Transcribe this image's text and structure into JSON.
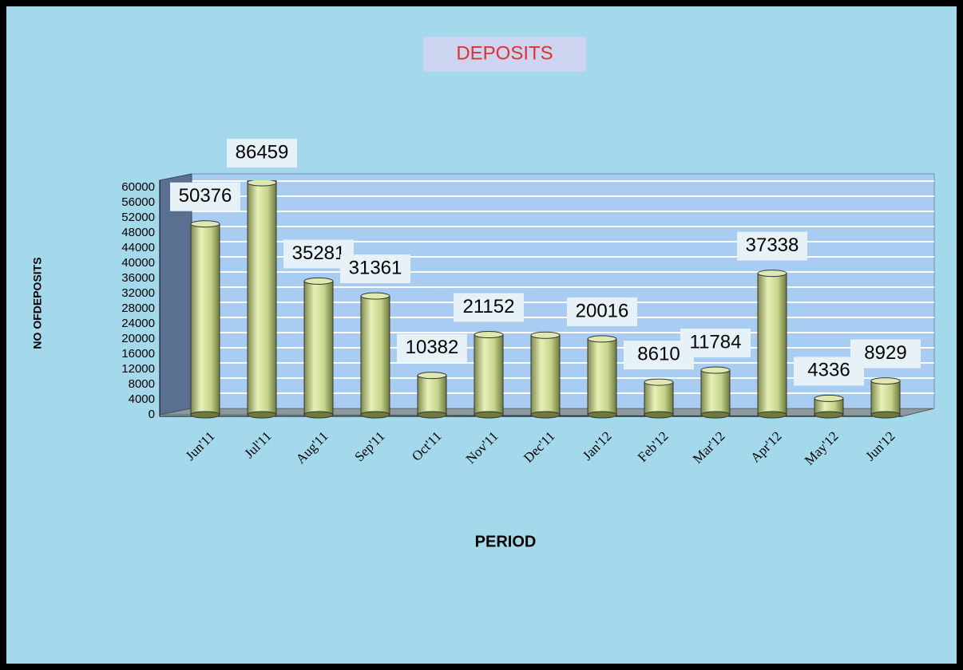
{
  "chart_data": {
    "type": "bar",
    "title": "DEPOSITS",
    "x_label": "PERIOD",
    "y_label": "NO OFDEPOSITS",
    "categories": [
      "Jun'11",
      "Jul'11",
      "Aug'11",
      "Sep'11",
      "Oct'11",
      "Nov'11",
      "Dec'11",
      "Jan'12",
      "Feb'12",
      "Mar'12",
      "Apr'12",
      "May'12",
      "Jun'12"
    ],
    "values": [
      50376,
      86459,
      35281,
      31361,
      10382,
      21152,
      21000,
      20016,
      8610,
      11784,
      37338,
      4336,
      8929
    ],
    "value_labels": [
      "50376",
      "86459",
      "35281",
      "31361",
      "10382",
      "21152",
      null,
      "20016",
      "8610",
      "11784",
      "37338",
      "4336",
      "8929"
    ],
    "color": "#c8d890",
    "ylim": [
      0,
      60000
    ],
    "yticks": [
      0,
      4000,
      8000,
      12000,
      16000,
      20000,
      24000,
      28000,
      32000,
      36000,
      40000,
      44000,
      48000,
      52000,
      56000,
      60000
    ],
    "grid": true
  }
}
